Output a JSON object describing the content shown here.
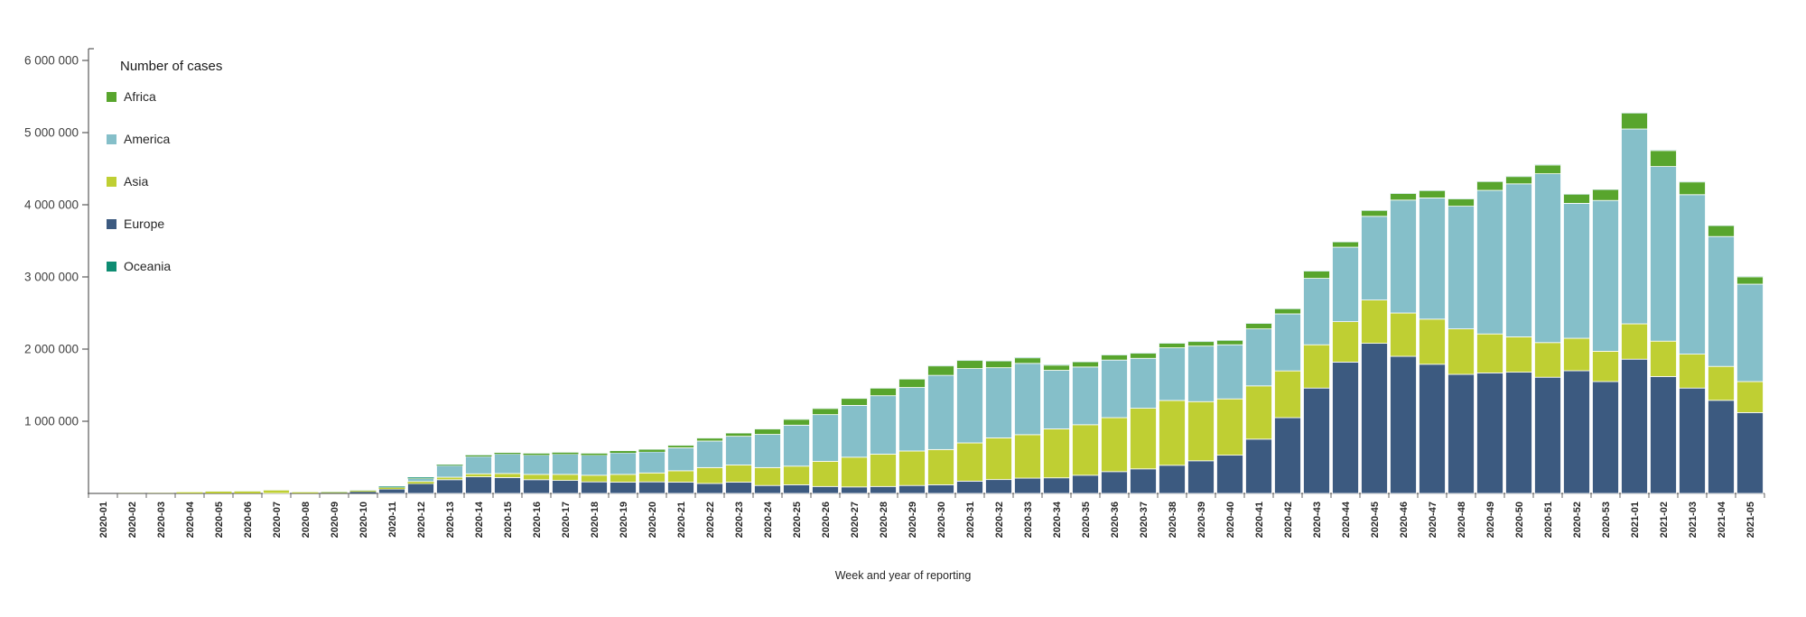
{
  "chart_data": {
    "type": "bar",
    "stacked": true,
    "title": "Number of cases",
    "xlabel": "Week and year of reporting",
    "ylabel": "",
    "ylim": [
      0,
      6000000
    ],
    "grid": false,
    "legend_position": "upper-left",
    "yticks": [
      {
        "value": 1000000,
        "label": "1 000 000"
      },
      {
        "value": 2000000,
        "label": "2 000 000"
      },
      {
        "value": 3000000,
        "label": "3 000 000"
      },
      {
        "value": 4000000,
        "label": "4 000 000"
      },
      {
        "value": 5000000,
        "label": "5 000 000"
      },
      {
        "value": 6000000,
        "label": "6 000 000"
      }
    ],
    "categories": [
      "2020-01",
      "2020-02",
      "2020-03",
      "2020-04",
      "2020-05",
      "2020-06",
      "2020-07",
      "2020-08",
      "2020-09",
      "2020-10",
      "2020-11",
      "2020-12",
      "2020-13",
      "2020-14",
      "2020-15",
      "2020-16",
      "2020-17",
      "2020-18",
      "2020-19",
      "2020-20",
      "2020-21",
      "2020-22",
      "2020-23",
      "2020-24",
      "2020-25",
      "2020-26",
      "2020-27",
      "2020-28",
      "2020-29",
      "2020-30",
      "2020-31",
      "2020-32",
      "2020-33",
      "2020-34",
      "2020-35",
      "2020-36",
      "2020-37",
      "2020-38",
      "2020-39",
      "2020-40",
      "2020-41",
      "2020-42",
      "2020-43",
      "2020-44",
      "2020-45",
      "2020-46",
      "2020-47",
      "2020-48",
      "2020-49",
      "2020-50",
      "2020-51",
      "2020-52",
      "2020-53",
      "2021-01",
      "2021-02",
      "2021-03",
      "2021-04",
      "2021-05"
    ],
    "stack_order": [
      "Europe",
      "Asia",
      "America",
      "Africa",
      "Oceania"
    ],
    "series": [
      {
        "name": "Africa",
        "color": "#58A52D",
        "values": [
          0,
          0,
          0,
          0,
          0,
          0,
          0,
          0,
          1000,
          1000,
          2000,
          5000,
          10000,
          15000,
          16000,
          20000,
          21000,
          22000,
          25000,
          30000,
          34000,
          40000,
          44000,
          74000,
          80000,
          84000,
          96000,
          104000,
          116000,
          130000,
          112000,
          92000,
          76000,
          70000,
          70000,
          70000,
          70000,
          62000,
          62000,
          60000,
          75000,
          70000,
          100000,
          72000,
          80000,
          90000,
          100000,
          100000,
          120000,
          100000,
          120000,
          125000,
          150000,
          220000,
          220000,
          175000,
          150000,
          100000
        ]
      },
      {
        "name": "America",
        "color": "#85BFC9",
        "values": [
          0,
          0,
          0,
          0,
          1000,
          1000,
          1000,
          1000,
          1000,
          2000,
          6000,
          42000,
          160000,
          240000,
          270000,
          268000,
          280000,
          278000,
          298000,
          292000,
          318000,
          368000,
          398000,
          460000,
          568000,
          648000,
          718000,
          810000,
          880000,
          1028000,
          1030000,
          972000,
          988000,
          812000,
          800000,
          798000,
          692000,
          730000,
          770000,
          750000,
          790000,
          790000,
          920000,
          1032000,
          1160000,
          1565000,
          1680000,
          1700000,
          1990000,
          2120000,
          2340000,
          1870000,
          2090000,
          2700000,
          2420000,
          2210000,
          1800000,
          1350000
        ]
      },
      {
        "name": "Asia",
        "color": "#BFCF33",
        "values": [
          0,
          2000,
          3000,
          15000,
          24000,
          26000,
          45000,
          14000,
          11000,
          14000,
          20000,
          30000,
          35000,
          42000,
          56000,
          74000,
          84000,
          92000,
          108000,
          124000,
          158000,
          220000,
          238000,
          248000,
          258000,
          348000,
          412000,
          448000,
          478000,
          488000,
          530000,
          578000,
          602000,
          678000,
          700000,
          748000,
          840000,
          898000,
          820000,
          780000,
          738000,
          648000,
          600000,
          560000,
          600000,
          600000,
          625000,
          630000,
          540000,
          490000,
          480000,
          450000,
          420000,
          490000,
          490000,
          470000,
          470000,
          430000
        ]
      },
      {
        "name": "Europe",
        "color": "#3C5A80",
        "values": [
          0,
          0,
          0,
          1000,
          1000,
          1000,
          1000,
          2000,
          6000,
          22000,
          60000,
          135000,
          190000,
          230000,
          220000,
          190000,
          180000,
          160000,
          156000,
          160000,
          156000,
          138000,
          156000,
          110000,
          120000,
          96000,
          90000,
          96000,
          110000,
          120000,
          170000,
          192000,
          212000,
          216000,
          252000,
          302000,
          340000,
          390000,
          452000,
          530000,
          752000,
          1050000,
          1460000,
          1820000,
          2080000,
          1900000,
          1790000,
          1650000,
          1670000,
          1680000,
          1610000,
          1700000,
          1550000,
          1860000,
          1620000,
          1460000,
          1290000,
          1120000
        ]
      },
      {
        "name": "Oceania",
        "color": "#0E8C72",
        "values": [
          0,
          0,
          0,
          0,
          0,
          0,
          0,
          0,
          1000,
          1000,
          8000,
          10000,
          3000,
          2000,
          1000,
          1000,
          1000,
          1000,
          1000,
          1000,
          1000,
          1000,
          1000,
          1000,
          1000,
          1000,
          1000,
          1000,
          1000,
          2000,
          2000,
          2000,
          3000,
          3000,
          2000,
          2000,
          2000,
          2000,
          2000,
          2000,
          2000,
          2000,
          2000,
          2000,
          2000,
          2000,
          2000,
          2000,
          2000,
          2000,
          2000,
          2000,
          2000,
          2000,
          2000,
          2000,
          2000,
          2000
        ]
      }
    ],
    "colors": {
      "axis_line": "#666666",
      "tick_text": "#404040",
      "category_text": "#262626",
      "axis_title_text": "#262626"
    }
  }
}
